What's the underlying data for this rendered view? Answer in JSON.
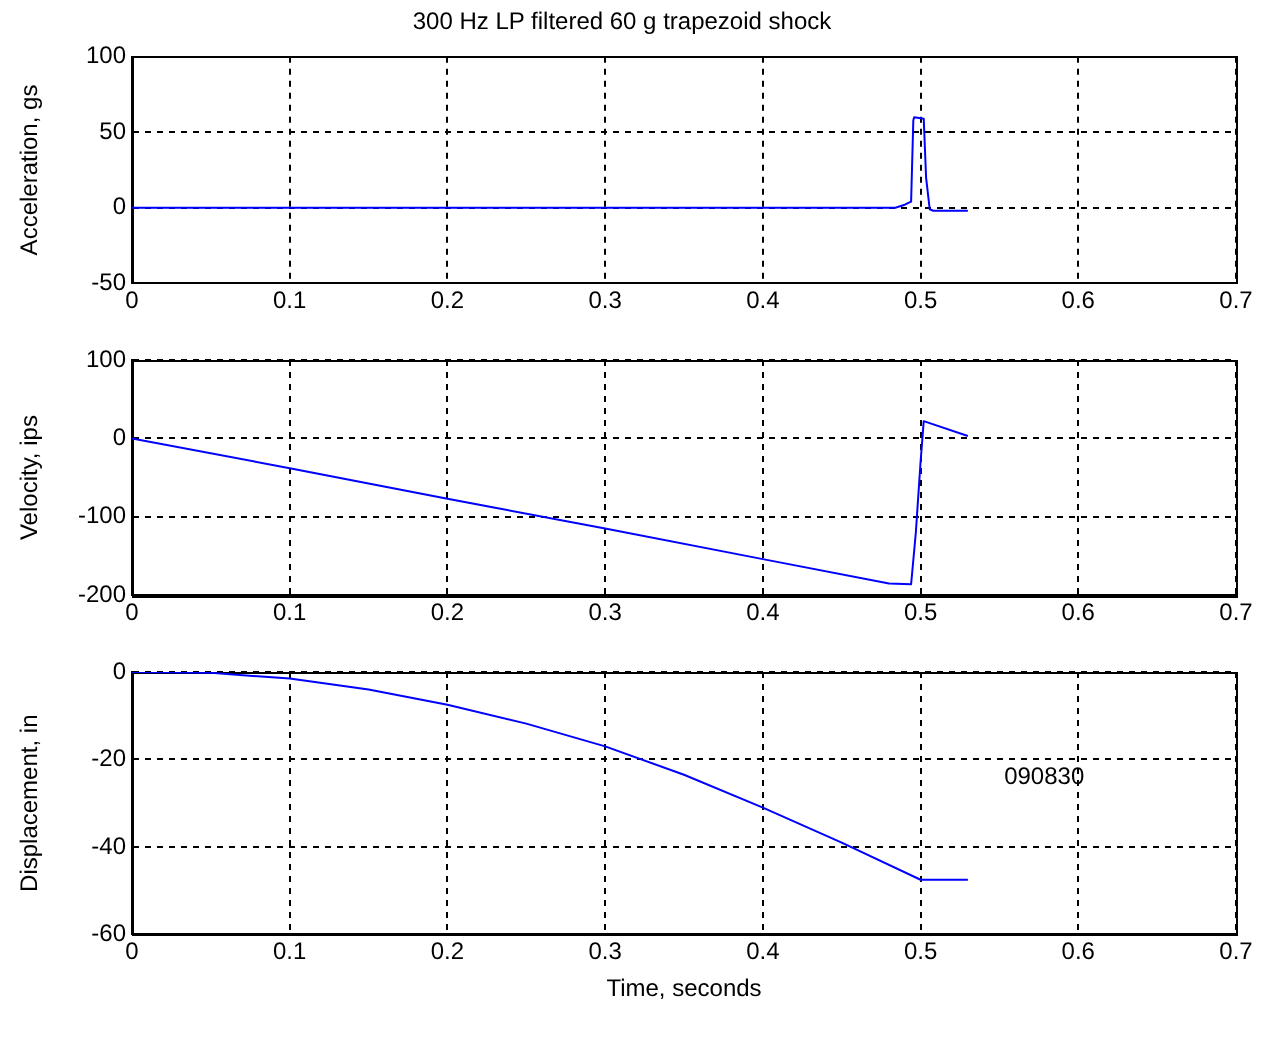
{
  "chart_data": [
    {
      "type": "line",
      "title": "300 Hz LP filtered 60 g trapezoid shock",
      "ylabel": "Acceleration, gs",
      "xlim": [
        0,
        0.7
      ],
      "xticks": [
        0,
        0.1,
        0.2,
        0.3,
        0.4,
        0.5,
        0.6,
        0.7
      ],
      "ylim": [
        -50,
        100
      ],
      "yticks": [
        -50,
        0,
        50,
        100
      ],
      "grid": true,
      "series": [
        {
          "color": "#0000ff",
          "x": [
            0,
            0.484,
            0.49,
            0.494,
            0.4954,
            0.496,
            0.502,
            0.5035,
            0.5058,
            0.508,
            0.53
          ],
          "values": [
            0,
            0,
            2,
            4,
            58,
            60,
            59,
            20,
            -1,
            -2,
            -2
          ]
        }
      ]
    },
    {
      "type": "line",
      "ylabel": "Velocity, ips",
      "xlim": [
        0,
        0.7
      ],
      "xticks": [
        0,
        0.1,
        0.2,
        0.3,
        0.4,
        0.5,
        0.6,
        0.7
      ],
      "ylim": [
        -200,
        100
      ],
      "yticks": [
        -200,
        -100,
        0,
        100
      ],
      "grid": true,
      "series": [
        {
          "color": "#0000ff",
          "x": [
            0,
            0.1,
            0.2,
            0.3,
            0.4,
            0.48,
            0.494,
            0.497,
            0.5,
            0.502,
            0.53
          ],
          "values": [
            0,
            -38,
            -77,
            -115,
            -154,
            -185,
            -186,
            -120,
            -30,
            22,
            3
          ]
        }
      ]
    },
    {
      "type": "line",
      "ylabel": "Displacement, in",
      "xlabel": "Time, seconds",
      "xlim": [
        0,
        0.7
      ],
      "xticks": [
        0,
        0.1,
        0.2,
        0.3,
        0.4,
        0.5,
        0.6,
        0.7
      ],
      "ylim": [
        -60,
        0
      ],
      "yticks": [
        -60,
        -40,
        -20,
        0
      ],
      "grid": true,
      "annotations": [
        "090830"
      ],
      "series": [
        {
          "color": "#0000ff",
          "x": [
            0,
            0.05,
            0.1,
            0.15,
            0.2,
            0.25,
            0.3,
            0.35,
            0.4,
            0.45,
            0.5,
            0.53
          ],
          "values": [
            0,
            -0.2,
            -1.5,
            -4,
            -7.5,
            -11.8,
            -17,
            -23.5,
            -31,
            -39,
            -47.5,
            -47.5
          ]
        }
      ]
    }
  ]
}
